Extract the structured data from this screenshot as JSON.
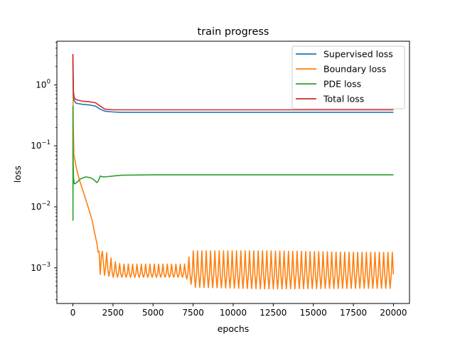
{
  "chart_data": {
    "type": "line",
    "title": "train progress",
    "xlabel": "epochs",
    "ylabel": "loss",
    "yscale": "log",
    "xlim": [
      -1000,
      21000
    ],
    "ylim": [
      0.00026,
      5.2
    ],
    "grid": false,
    "legend_position": "top-right",
    "x_ticks": [
      {
        "value": 0,
        "label": "0"
      },
      {
        "value": 2500,
        "label": "2500"
      },
      {
        "value": 5000,
        "label": "5000"
      },
      {
        "value": 7500,
        "label": "7500"
      },
      {
        "value": 10000,
        "label": "10000"
      },
      {
        "value": 12500,
        "label": "12500"
      },
      {
        "value": 15000,
        "label": "15000"
      },
      {
        "value": 17500,
        "label": "17500"
      },
      {
        "value": 20000,
        "label": "20000"
      }
    ],
    "y_ticks": [
      {
        "value": 1,
        "base": "10",
        "exp": "0"
      },
      {
        "value": 0.1,
        "base": "10",
        "exp": "−1"
      },
      {
        "value": 0.01,
        "base": "10",
        "exp": "−2"
      },
      {
        "value": 0.001,
        "base": "10",
        "exp": "−3"
      }
    ],
    "series": [
      {
        "name": "Supervised loss",
        "color": "#1f77b4",
        "x": [
          0,
          30,
          80,
          200,
          600,
          1000,
          1400,
          1700,
          2000,
          2500,
          3000,
          5000,
          10000,
          15000,
          20000
        ],
        "y": [
          2.5,
          0.7,
          0.55,
          0.5,
          0.48,
          0.47,
          0.45,
          0.4,
          0.37,
          0.36,
          0.355,
          0.355,
          0.355,
          0.355,
          0.355
        ]
      },
      {
        "name": "Boundary loss",
        "color": "#ff7f0e",
        "x": [
          0,
          20,
          60,
          120,
          200,
          400,
          700,
          1000,
          1200,
          1350,
          1500,
          1650,
          1800,
          1950,
          2100,
          2300,
          2600,
          3000,
          5000,
          7000,
          7500,
          10000,
          15000,
          20000
        ],
        "y": [
          3.2,
          0.25,
          0.07,
          0.06,
          0.045,
          0.028,
          0.016,
          0.009,
          0.006,
          0.0038,
          0.0025,
          0.0018,
          0.0014,
          0.0011,
          0.001,
          0.0009,
          0.00085,
          0.0008,
          0.0008,
          0.0008,
          0.00078,
          0.00078,
          0.00078,
          0.00078
        ]
      },
      {
        "name": "PDE loss",
        "color": "#2ca02c",
        "x": [
          0,
          5,
          10,
          20,
          40,
          80,
          150,
          300,
          500,
          800,
          1100,
          1300,
          1500,
          1600,
          1700,
          1850,
          2000,
          2500,
          3000,
          5000,
          10000,
          15000,
          20000
        ],
        "y": [
          0.45,
          0.006,
          0.1,
          0.05,
          0.03,
          0.024,
          0.024,
          0.026,
          0.029,
          0.031,
          0.03,
          0.028,
          0.025,
          0.027,
          0.032,
          0.031,
          0.031,
          0.032,
          0.033,
          0.0335,
          0.0335,
          0.0335,
          0.0335
        ]
      },
      {
        "name": "Total loss",
        "color": "#d62728",
        "x": [
          0,
          30,
          80,
          200,
          600,
          1000,
          1400,
          1700,
          2000,
          2500,
          3000,
          5000,
          10000,
          15000,
          20000
        ],
        "y": [
          3.2,
          0.8,
          0.62,
          0.57,
          0.54,
          0.53,
          0.51,
          0.45,
          0.4,
          0.39,
          0.39,
          0.39,
          0.39,
          0.39,
          0.39
        ]
      }
    ],
    "boundary_oscillation": {
      "start": 1500,
      "end": 20000,
      "period": 270,
      "baseline": 0.00078,
      "envelope_x": [
        1500,
        2000,
        2500,
        3000,
        7000,
        7500,
        12000,
        17500,
        20000
      ],
      "envelope_high": [
        0.0018,
        0.0019,
        0.0013,
        0.00115,
        0.00115,
        0.0019,
        0.0019,
        0.0018,
        0.0018
      ],
      "envelope_low": [
        0.0008,
        0.00075,
        0.0007,
        0.0007,
        0.0007,
        0.00048,
        0.00045,
        0.00046,
        0.00046
      ]
    }
  }
}
